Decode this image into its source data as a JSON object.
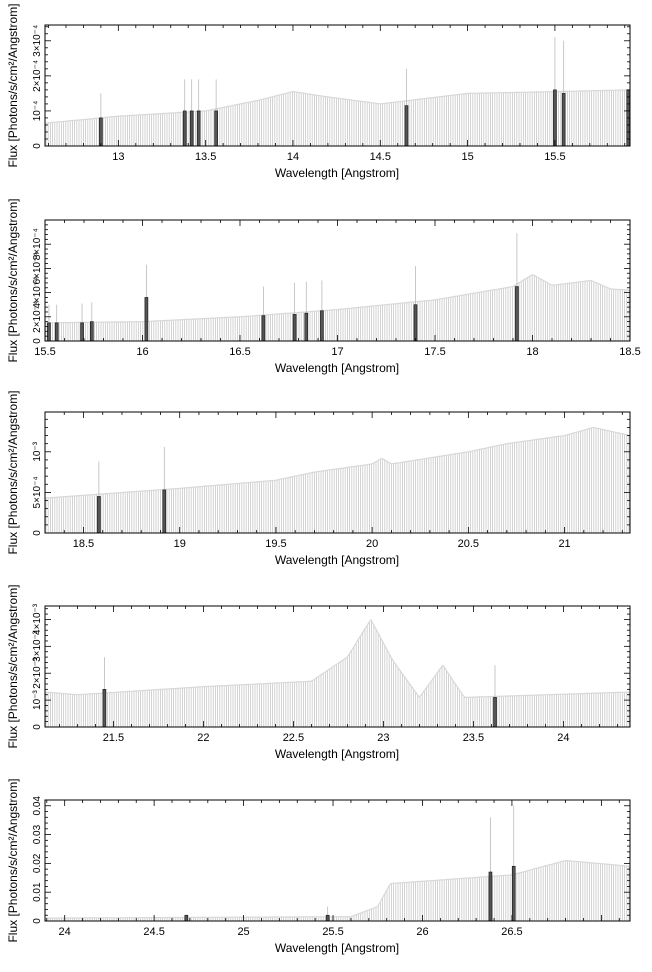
{
  "chart_data": [
    {
      "type": "bar",
      "xlabel": "Wavelength [Angstrom]",
      "ylabel": "Flux [Photons/s/cm²/Angstrom]",
      "xlim": [
        12.58,
        15.93
      ],
      "ylim": [
        0,
        0.000345
      ],
      "xticks": [
        13,
        13.5,
        14,
        14.5,
        15,
        15.5
      ],
      "xtick_labels": [
        "13",
        "13.5",
        "14",
        "14.5",
        "15",
        "15.5"
      ],
      "yticks": [
        0,
        0.0001,
        0.0002,
        0.0003
      ],
      "ytick_labels": [
        "0",
        "10⁻⁴",
        "2×10⁻⁴",
        "3×10⁻⁴"
      ],
      "continuum": [
        [
          12.58,
          6.5e-05
        ],
        [
          13.0,
          8.5e-05
        ],
        [
          13.5,
          0.0001
        ],
        [
          13.8,
          0.00013
        ],
        [
          14.0,
          0.000155
        ],
        [
          14.2,
          0.00014
        ],
        [
          14.5,
          0.00012
        ],
        [
          15.0,
          0.00015
        ],
        [
          15.5,
          0.000155
        ],
        [
          15.93,
          0.00016
        ]
      ],
      "lines": [
        [
          12.9,
          8e-05,
          0.00015
        ],
        [
          13.38,
          0.0001,
          0.00019
        ],
        [
          13.42,
          0.0001,
          0.00019
        ],
        [
          13.46,
          0.0001,
          0.00019
        ],
        [
          13.56,
          0.0001,
          0.00019
        ],
        [
          14.65,
          0.000115,
          0.00022
        ],
        [
          15.5,
          0.00016,
          0.00031
        ],
        [
          15.55,
          0.00015,
          0.0003
        ],
        [
          15.92,
          0.00016,
          0.00016
        ]
      ]
    },
    {
      "type": "bar",
      "xlabel": "Wavelength [Angstrom]",
      "ylabel": "Flux [Photons/s/cm²/Angstrom]",
      "xlim": [
        15.5,
        18.5
      ],
      "ylim": [
        0,
        0.001
      ],
      "xticks": [
        15.5,
        16,
        16.5,
        17,
        17.5,
        18,
        18.5
      ],
      "xtick_labels": [
        "15.5",
        "16",
        "16.5",
        "17",
        "17.5",
        "18",
        "18.5"
      ],
      "yticks": [
        0,
        0.0002,
        0.0004,
        0.0006,
        0.0008
      ],
      "ytick_labels": [
        "0",
        "2×10⁻⁴",
        "4×10⁻⁴",
        "6×10⁻⁴",
        "8×10⁻⁴"
      ],
      "continuum": [
        [
          15.5,
          0.00015
        ],
        [
          16.0,
          0.00016
        ],
        [
          16.5,
          0.0002
        ],
        [
          17.0,
          0.00026
        ],
        [
          17.5,
          0.00034
        ],
        [
          17.9,
          0.00045
        ],
        [
          18.0,
          0.00055
        ],
        [
          18.1,
          0.00046
        ],
        [
          18.3,
          0.0005
        ],
        [
          18.4,
          0.00043
        ],
        [
          18.5,
          0.00042
        ]
      ],
      "lines": [
        [
          15.52,
          0.00015,
          0.0003
        ],
        [
          15.56,
          0.00015,
          0.0003
        ],
        [
          15.69,
          0.00015,
          0.00031
        ],
        [
          15.74,
          0.00016,
          0.00032
        ],
        [
          16.02,
          0.00036,
          0.00063
        ],
        [
          16.62,
          0.00021,
          0.00045
        ],
        [
          16.78,
          0.00022,
          0.00048
        ],
        [
          16.84,
          0.00023,
          0.00049
        ],
        [
          16.92,
          0.00025,
          0.0005
        ],
        [
          17.4,
          0.0003,
          0.00062
        ],
        [
          17.92,
          0.00045,
          0.00089
        ]
      ]
    },
    {
      "type": "bar",
      "xlabel": "Wavelength [Angstrom]",
      "ylabel": "Flux [Photons/s/cm²/Angstrom]",
      "xlim": [
        18.3,
        21.34
      ],
      "ylim": [
        0,
        0.00149
      ],
      "xticks": [
        18.5,
        19,
        19.5,
        20,
        20.5,
        21
      ],
      "xtick_labels": [
        "18.5",
        "19",
        "19.5",
        "20",
        "20.5",
        "21"
      ],
      "yticks": [
        0,
        0.0005,
        0.001
      ],
      "ytick_labels": [
        "0",
        "5×10⁻⁴",
        "10⁻³"
      ],
      "continuum": [
        [
          18.3,
          0.00043
        ],
        [
          19.0,
          0.00055
        ],
        [
          19.5,
          0.00065
        ],
        [
          19.7,
          0.00075
        ],
        [
          20.0,
          0.00085
        ],
        [
          20.05,
          0.00092
        ],
        [
          20.1,
          0.00085
        ],
        [
          20.5,
          0.001
        ],
        [
          20.7,
          0.0011
        ],
        [
          21.0,
          0.0012
        ],
        [
          21.15,
          0.0013
        ],
        [
          21.34,
          0.0012
        ]
      ],
      "lines": [
        [
          18.58,
          0.00045,
          0.00088
        ],
        [
          18.92,
          0.00053,
          0.00106
        ]
      ]
    },
    {
      "type": "bar",
      "xlabel": "Wavelength [Angstrom]",
      "ylabel": "Flux [Photons/s/cm²/Angstrom]",
      "xlim": [
        21.12,
        24.37
      ],
      "ylim": [
        0,
        0.0045
      ],
      "xticks": [
        21.5,
        22,
        22.5,
        23,
        23.5,
        24
      ],
      "xtick_labels": [
        "21.5",
        "22",
        "22.5",
        "23",
        "23.5",
        "24"
      ],
      "yticks": [
        0,
        0.001,
        0.002,
        0.003,
        0.004
      ],
      "ytick_labels": [
        "0",
        "10⁻³",
        "2×10⁻³",
        "3×10⁻³",
        "4×10⁻³"
      ],
      "continuum": [
        [
          21.12,
          0.0013
        ],
        [
          21.3,
          0.0012
        ],
        [
          22.0,
          0.0015
        ],
        [
          22.6,
          0.0017
        ],
        [
          22.8,
          0.0026
        ],
        [
          22.93,
          0.004
        ],
        [
          23.05,
          0.0025
        ],
        [
          23.2,
          0.0011
        ],
        [
          23.33,
          0.0023
        ],
        [
          23.45,
          0.0011
        ],
        [
          24.37,
          0.0013
        ]
      ],
      "lines": [
        [
          21.45,
          0.0014,
          0.0026
        ],
        [
          23.62,
          0.0011,
          0.0023
        ]
      ]
    },
    {
      "type": "bar",
      "xlabel": "Wavelength [Angstrom]",
      "ylabel": "Flux [Photons/s/cm²/Angstrom]",
      "xlim": [
        23.89,
        27.16
      ],
      "ylim": [
        0,
        0.042
      ],
      "xticks": [
        24,
        24.5,
        25,
        25.5,
        26,
        26.5
      ],
      "xtick_labels": [
        "24",
        "24.5",
        "25",
        "25.5",
        "26",
        "26.5"
      ],
      "yticks": [
        0,
        0.01,
        0.02,
        0.03,
        0.04
      ],
      "ytick_labels": [
        "0",
        "0.01",
        "0.02",
        "0.03",
        "0.04"
      ],
      "continuum": [
        [
          23.89,
          0.001
        ],
        [
          25.6,
          0.0015
        ],
        [
          25.75,
          0.005
        ],
        [
          25.82,
          0.013
        ],
        [
          26.5,
          0.016
        ],
        [
          26.8,
          0.021
        ],
        [
          27.16,
          0.019
        ]
      ],
      "lines": [
        [
          24.68,
          0.002,
          0.002
        ],
        [
          25.47,
          0.002,
          0.005
        ],
        [
          26.38,
          0.017,
          0.036
        ],
        [
          26.51,
          0.019,
          0.04
        ]
      ]
    }
  ]
}
